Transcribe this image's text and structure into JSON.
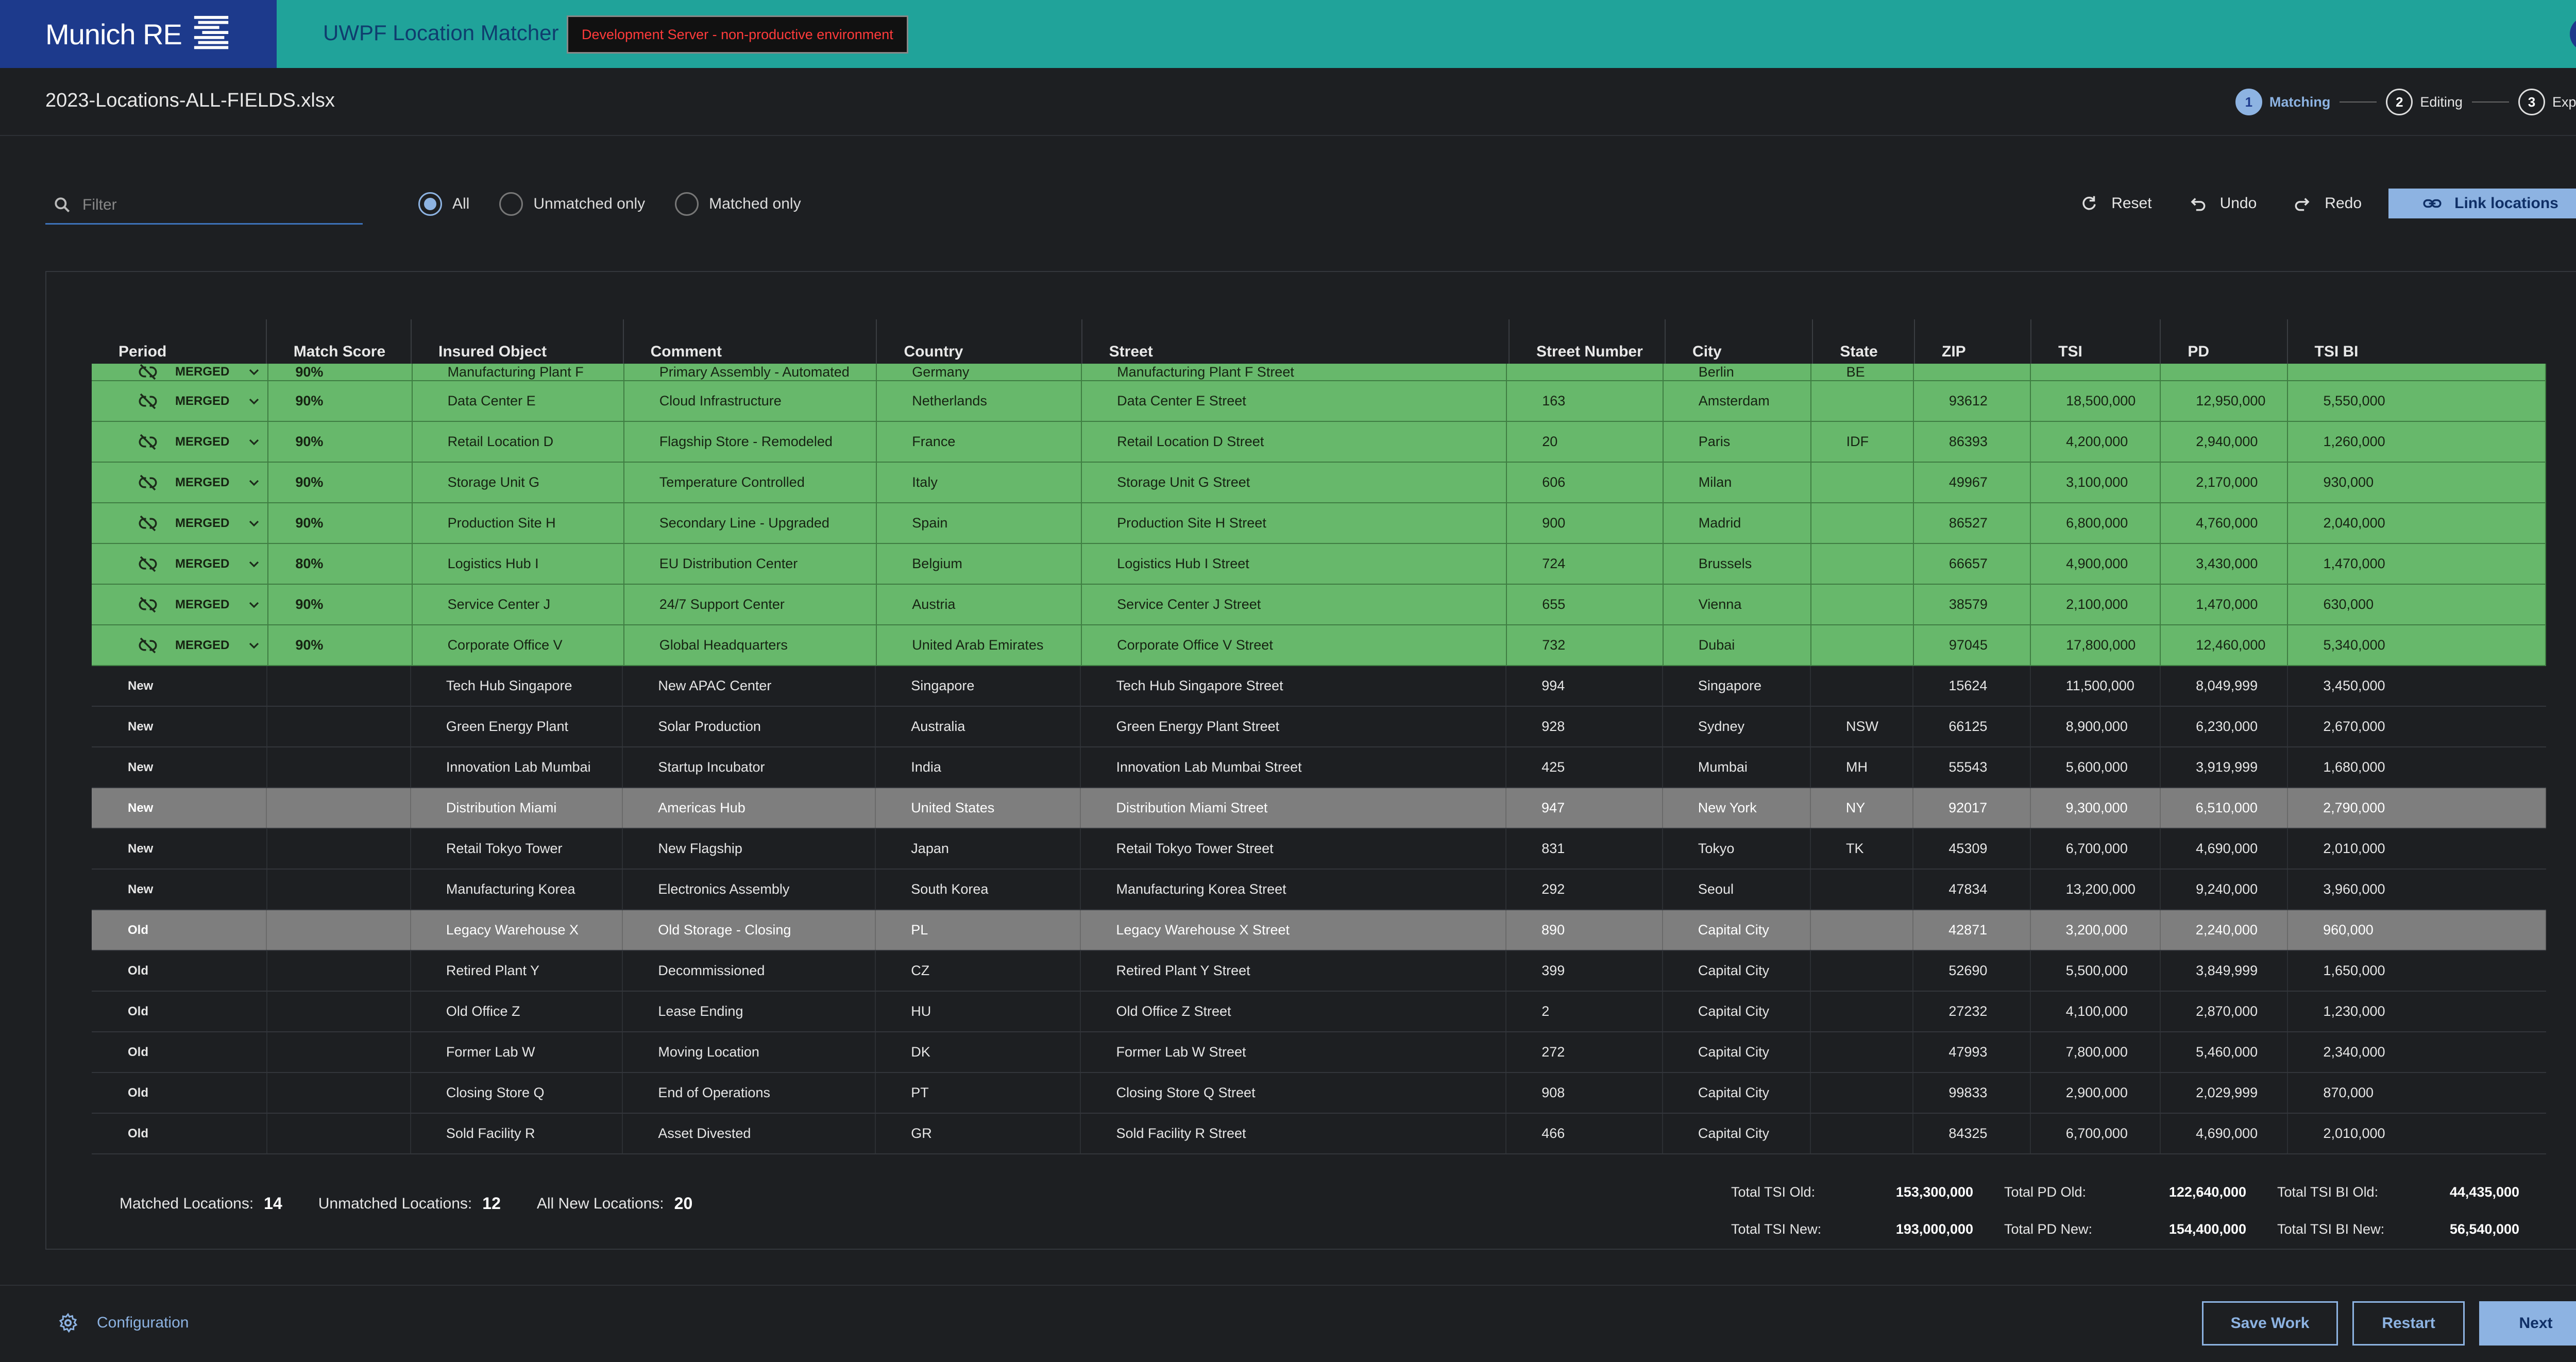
{
  "brand": {
    "name": "Munich RE"
  },
  "app": {
    "title": "UWPF Location Matcher",
    "env_badge": "Development Server - non-productive environment",
    "help": "?"
  },
  "file": {
    "name": "2023-Locations-ALL-FIELDS.xlsx"
  },
  "steps": [
    {
      "num": "1",
      "label": "Matching",
      "active": true
    },
    {
      "num": "2",
      "label": "Editing",
      "active": false
    },
    {
      "num": "3",
      "label": "Export",
      "active": false
    }
  ],
  "filter": {
    "placeholder": "Filter",
    "value": ""
  },
  "view_filter": {
    "options": [
      "All",
      "Unmatched only",
      "Matched only"
    ],
    "selected": "All"
  },
  "actions": {
    "reset": "Reset",
    "undo": "Undo",
    "redo": "Redo",
    "link": "Link locations"
  },
  "table": {
    "columns": [
      "Period",
      "Match Score",
      "Insured Object",
      "Comment",
      "Country",
      "Street",
      "Street Number",
      "City",
      "State",
      "ZIP",
      "TSI",
      "PD",
      "TSI BI"
    ],
    "rows": [
      {
        "type": "matched",
        "partial": true,
        "period": "MERGED",
        "score": "90%",
        "object": "Manufacturing Plant F",
        "comment": "Primary Assembly - Automated",
        "country": "Germany",
        "street": "Manufacturing Plant F Street",
        "number": "",
        "city": "Berlin",
        "state": "BE",
        "zip": "",
        "tsi": "",
        "pd": "",
        "tsibi": ""
      },
      {
        "type": "matched",
        "period": "MERGED",
        "score": "90%",
        "object": "Data Center E",
        "comment": "Cloud Infrastructure",
        "country": "Netherlands",
        "street": "Data Center E Street",
        "number": "163",
        "city": "Amsterdam",
        "state": "",
        "zip": "93612",
        "tsi": "18,500,000",
        "pd": "12,950,000",
        "tsibi": "5,550,000"
      },
      {
        "type": "matched",
        "period": "MERGED",
        "score": "90%",
        "object": "Retail Location D",
        "comment": "Flagship Store - Remodeled",
        "country": "France",
        "street": "Retail Location D Street",
        "number": "20",
        "city": "Paris",
        "state": "IDF",
        "zip": "86393",
        "tsi": "4,200,000",
        "pd": "2,940,000",
        "tsibi": "1,260,000"
      },
      {
        "type": "matched",
        "period": "MERGED",
        "score": "90%",
        "object": "Storage Unit G",
        "comment": "Temperature Controlled",
        "country": "Italy",
        "street": "Storage Unit G Street",
        "number": "606",
        "city": "Milan",
        "state": "",
        "zip": "49967",
        "tsi": "3,100,000",
        "pd": "2,170,000",
        "tsibi": "930,000"
      },
      {
        "type": "matched",
        "period": "MERGED",
        "score": "90%",
        "object": "Production Site H",
        "comment": "Secondary Line - Upgraded",
        "country": "Spain",
        "street": "Production Site H Street",
        "number": "900",
        "city": "Madrid",
        "state": "",
        "zip": "86527",
        "tsi": "6,800,000",
        "pd": "4,760,000",
        "tsibi": "2,040,000"
      },
      {
        "type": "matched",
        "period": "MERGED",
        "score": "80%",
        "object": "Logistics Hub I",
        "comment": "EU Distribution Center",
        "country": "Belgium",
        "street": "Logistics Hub I Street",
        "number": "724",
        "city": "Brussels",
        "state": "",
        "zip": "66657",
        "tsi": "4,900,000",
        "pd": "3,430,000",
        "tsibi": "1,470,000"
      },
      {
        "type": "matched",
        "period": "MERGED",
        "score": "90%",
        "object": "Service Center J",
        "comment": "24/7 Support Center",
        "country": "Austria",
        "street": "Service Center J Street",
        "number": "655",
        "city": "Vienna",
        "state": "",
        "zip": "38579",
        "tsi": "2,100,000",
        "pd": "1,470,000",
        "tsibi": "630,000"
      },
      {
        "type": "matched",
        "period": "MERGED",
        "score": "90%",
        "object": "Corporate Office V",
        "comment": "Global Headquarters",
        "country": "United Arab Emirates",
        "street": "Corporate Office V Street",
        "number": "732",
        "city": "Dubai",
        "state": "",
        "zip": "97045",
        "tsi": "17,800,000",
        "pd": "12,460,000",
        "tsibi": "5,340,000"
      },
      {
        "type": "plain",
        "period": "New",
        "score": "",
        "object": "Tech Hub Singapore",
        "comment": "New APAC Center",
        "country": "Singapore",
        "street": "Tech Hub Singapore Street",
        "number": "994",
        "city": "Singapore",
        "state": "",
        "zip": "15624",
        "tsi": "11,500,000",
        "pd": "8,049,999",
        "tsibi": "3,450,000"
      },
      {
        "type": "plain",
        "period": "New",
        "score": "",
        "object": "Green Energy Plant",
        "comment": "Solar Production",
        "country": "Australia",
        "street": "Green Energy Plant Street",
        "number": "928",
        "city": "Sydney",
        "state": "NSW",
        "zip": "66125",
        "tsi": "8,900,000",
        "pd": "6,230,000",
        "tsibi": "2,670,000"
      },
      {
        "type": "plain",
        "period": "New",
        "score": "",
        "object": "Innovation Lab Mumbai",
        "comment": "Startup Incubator",
        "country": "India",
        "street": "Innovation Lab Mumbai Street",
        "number": "425",
        "city": "Mumbai",
        "state": "MH",
        "zip": "55543",
        "tsi": "5,600,000",
        "pd": "3,919,999",
        "tsibi": "1,680,000"
      },
      {
        "type": "selected",
        "period": "New",
        "score": "",
        "object": "Distribution Miami",
        "comment": "Americas Hub",
        "country": "United States",
        "street": "Distribution Miami Street",
        "number": "947",
        "city": "New York",
        "state": "NY",
        "zip": "92017",
        "tsi": "9,300,000",
        "pd": "6,510,000",
        "tsibi": "2,790,000"
      },
      {
        "type": "plain",
        "period": "New",
        "score": "",
        "object": "Retail Tokyo Tower",
        "comment": "New Flagship",
        "country": "Japan",
        "street": "Retail Tokyo Tower Street",
        "number": "831",
        "city": "Tokyo",
        "state": "TK",
        "zip": "45309",
        "tsi": "6,700,000",
        "pd": "4,690,000",
        "tsibi": "2,010,000"
      },
      {
        "type": "plain",
        "period": "New",
        "score": "",
        "object": "Manufacturing Korea",
        "comment": "Electronics Assembly",
        "country": "South Korea",
        "street": "Manufacturing Korea Street",
        "number": "292",
        "city": "Seoul",
        "state": "",
        "zip": "47834",
        "tsi": "13,200,000",
        "pd": "9,240,000",
        "tsibi": "3,960,000"
      },
      {
        "type": "selected",
        "period": "Old",
        "score": "",
        "object": "Legacy Warehouse X",
        "comment": "Old Storage - Closing",
        "country": "PL",
        "street": "Legacy Warehouse X Street",
        "number": "890",
        "city": "Capital City",
        "state": "",
        "zip": "42871",
        "tsi": "3,200,000",
        "pd": "2,240,000",
        "tsibi": "960,000"
      },
      {
        "type": "plain",
        "period": "Old",
        "score": "",
        "object": "Retired Plant Y",
        "comment": "Decommissioned",
        "country": "CZ",
        "street": "Retired Plant Y Street",
        "number": "399",
        "city": "Capital City",
        "state": "",
        "zip": "52690",
        "tsi": "5,500,000",
        "pd": "3,849,999",
        "tsibi": "1,650,000"
      },
      {
        "type": "plain",
        "period": "Old",
        "score": "",
        "object": "Old Office Z",
        "comment": "Lease Ending",
        "country": "HU",
        "street": "Old Office Z Street",
        "number": "2",
        "city": "Capital City",
        "state": "",
        "zip": "27232",
        "tsi": "4,100,000",
        "pd": "2,870,000",
        "tsibi": "1,230,000"
      },
      {
        "type": "plain",
        "period": "Old",
        "score": "",
        "object": "Former Lab W",
        "comment": "Moving Location",
        "country": "DK",
        "street": "Former Lab W Street",
        "number": "272",
        "city": "Capital City",
        "state": "",
        "zip": "47993",
        "tsi": "7,800,000",
        "pd": "5,460,000",
        "tsibi": "2,340,000"
      },
      {
        "type": "plain",
        "period": "Old",
        "score": "",
        "object": "Closing Store Q",
        "comment": "End of Operations",
        "country": "PT",
        "street": "Closing Store Q Street",
        "number": "908",
        "city": "Capital City",
        "state": "",
        "zip": "99833",
        "tsi": "2,900,000",
        "pd": "2,029,999",
        "tsibi": "870,000"
      },
      {
        "type": "plain",
        "period": "Old",
        "score": "",
        "object": "Sold Facility R",
        "comment": "Asset Divested",
        "country": "GR",
        "street": "Sold Facility R Street",
        "number": "466",
        "city": "Capital City",
        "state": "",
        "zip": "84325",
        "tsi": "6,700,000",
        "pd": "4,690,000",
        "tsibi": "2,010,000"
      }
    ]
  },
  "summary": {
    "matched_label": "Matched Locations:",
    "matched": "14",
    "unmatched_label": "Unmatched Locations:",
    "unmatched": "12",
    "new_label": "All New Locations:",
    "new": "20"
  },
  "totals": {
    "tsi_old_label": "Total TSI Old:",
    "tsi_old": "153,300,000",
    "pd_old_label": "Total PD Old:",
    "pd_old": "122,640,000",
    "tsibi_old_label": "Total TSI BI Old:",
    "tsibi_old": "44,435,000",
    "tsi_new_label": "Total TSI New:",
    "tsi_new": "193,000,000",
    "pd_new_label": "Total PD New:",
    "pd_new": "154,400,000",
    "tsibi_new_label": "Total TSI BI New:",
    "tsibi_new": "56,540,000"
  },
  "footer": {
    "config": "Configuration",
    "save": "Save Work",
    "restart": "Restart",
    "next": "Next"
  },
  "colors": {
    "topbar": "#20a39a",
    "brand": "#1d3a8c",
    "accent": "#8db3e2",
    "matched_row": "#67b86b",
    "selected_row": "#7e7e7e",
    "background": "#1d1f22"
  }
}
